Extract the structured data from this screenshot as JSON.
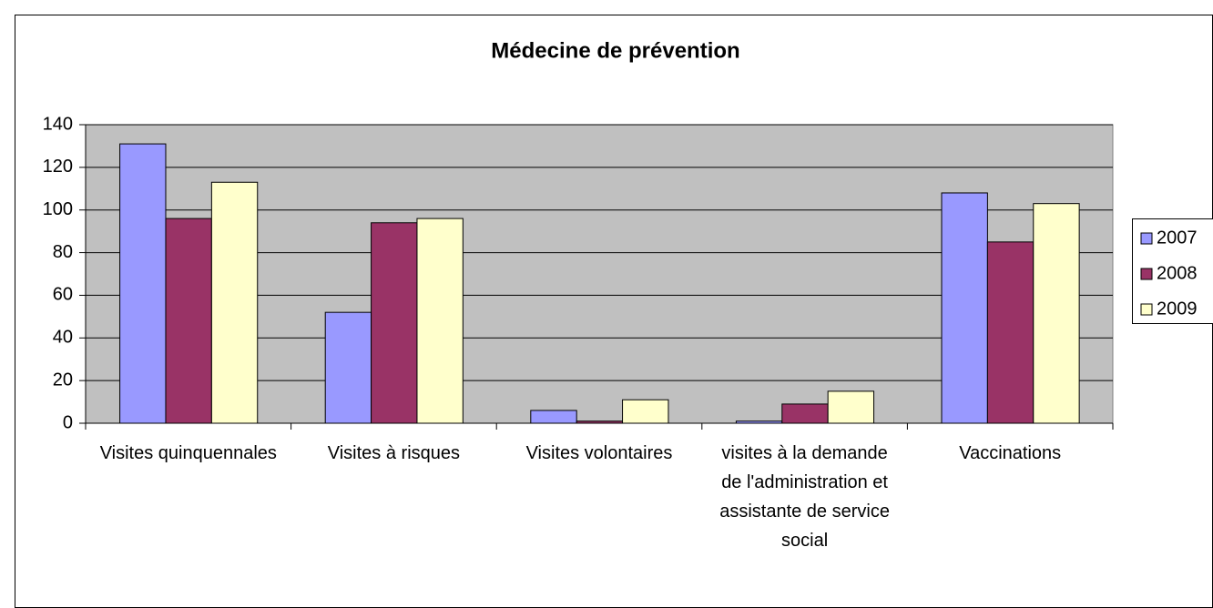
{
  "chart_data": {
    "type": "bar",
    "title": "Médecine de prévention",
    "categories": [
      "Visites quinquennales",
      "Visites à risques",
      "Visites volontaires",
      "visites à la demande de l'administration et assistante de service social",
      "Vaccinations"
    ],
    "series": [
      {
        "name": "2007",
        "color": "#9999ff",
        "values": [
          131,
          52,
          6,
          1,
          108
        ]
      },
      {
        "name": "2008",
        "color": "#993366",
        "values": [
          96,
          94,
          1,
          9,
          85
        ]
      },
      {
        "name": "2009",
        "color": "#ffffcc",
        "values": [
          113,
          96,
          11,
          15,
          103
        ]
      }
    ],
    "ylim": [
      0,
      140
    ],
    "yticks": [
      0,
      20,
      40,
      60,
      80,
      100,
      120,
      140
    ],
    "grid": true,
    "legend": "right"
  }
}
